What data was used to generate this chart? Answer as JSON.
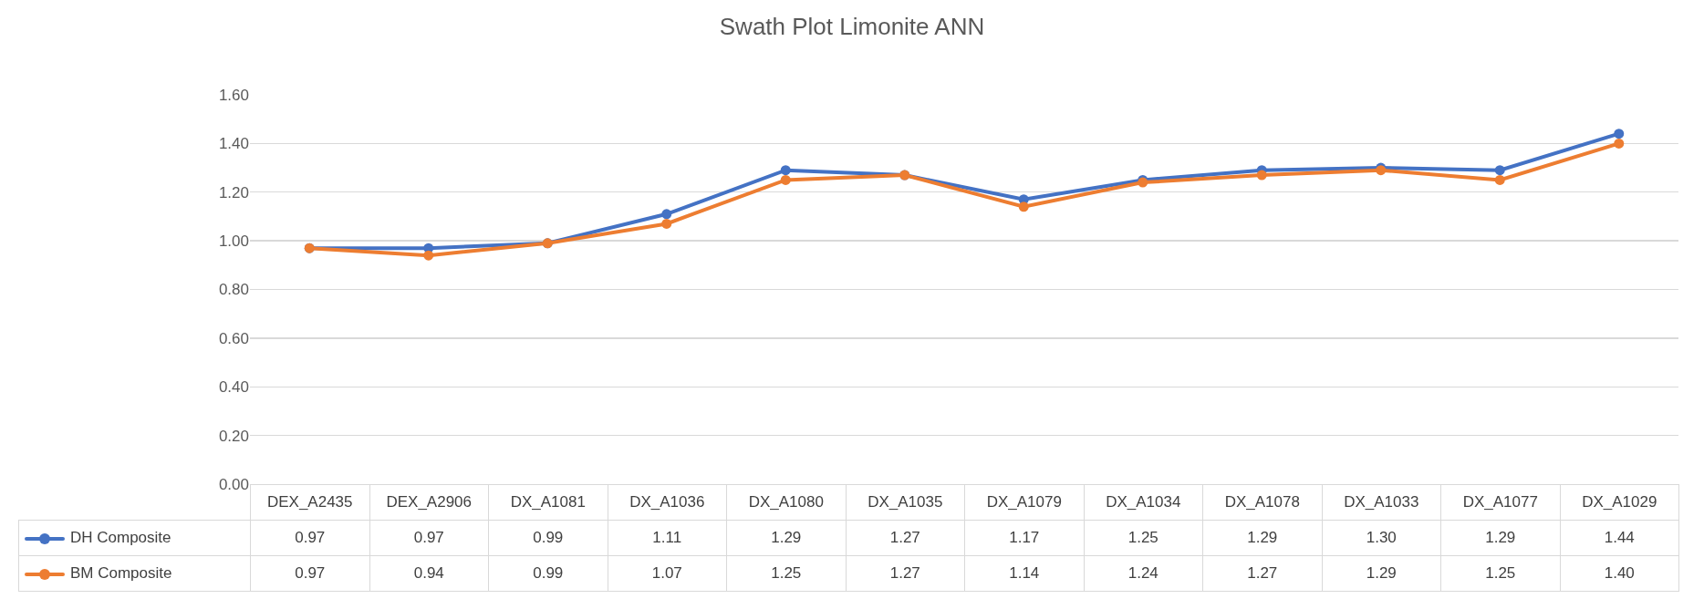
{
  "chart_data": {
    "type": "line",
    "title": "Swath Plot Limonite ANN",
    "categories": [
      "DEX_A2435",
      "DEX_A2906",
      "DX_A1081",
      "DX_A1036",
      "DX_A1080",
      "DX_A1035",
      "DX_A1079",
      "DX_A1034",
      "DX_A1078",
      "DX_A1033",
      "DX_A1077",
      "DX_A1029"
    ],
    "series": [
      {
        "name": "DH Composite",
        "color": "#4472c4",
        "values": [
          0.97,
          0.97,
          0.99,
          1.11,
          1.29,
          1.27,
          1.17,
          1.25,
          1.29,
          1.3,
          1.29,
          1.44
        ],
        "value_labels": [
          "0.97",
          "0.97",
          "0.99",
          "1.11",
          "1.29",
          "1.27",
          "1.17",
          "1.25",
          "1.29",
          "1.30",
          "1.29",
          "1.44"
        ]
      },
      {
        "name": "BM Composite",
        "color": "#ed7d31",
        "values": [
          0.97,
          0.94,
          0.99,
          1.07,
          1.25,
          1.27,
          1.14,
          1.24,
          1.27,
          1.29,
          1.25,
          1.4
        ],
        "value_labels": [
          "0.97",
          "0.94",
          "0.99",
          "1.07",
          "1.25",
          "1.27",
          "1.14",
          "1.24",
          "1.27",
          "1.29",
          "1.25",
          "1.40"
        ]
      }
    ],
    "ylim": [
      0,
      1.6
    ],
    "yticks": [
      {
        "value": 0,
        "label": "0.00"
      },
      {
        "value": 0.2,
        "label": "0.20"
      },
      {
        "value": 0.4,
        "label": "0.40"
      },
      {
        "value": 0.6,
        "label": "0.60"
      },
      {
        "value": 0.8,
        "label": "0.80"
      },
      {
        "value": 1,
        "label": "1.00"
      },
      {
        "value": 1.2,
        "label": "1.20"
      },
      {
        "value": 1.4,
        "label": "1.40"
      },
      {
        "value": 1.6,
        "label": "1.60"
      }
    ],
    "grid": "y",
    "legend": "bottom",
    "marker": "circle",
    "line_style": "solid"
  }
}
